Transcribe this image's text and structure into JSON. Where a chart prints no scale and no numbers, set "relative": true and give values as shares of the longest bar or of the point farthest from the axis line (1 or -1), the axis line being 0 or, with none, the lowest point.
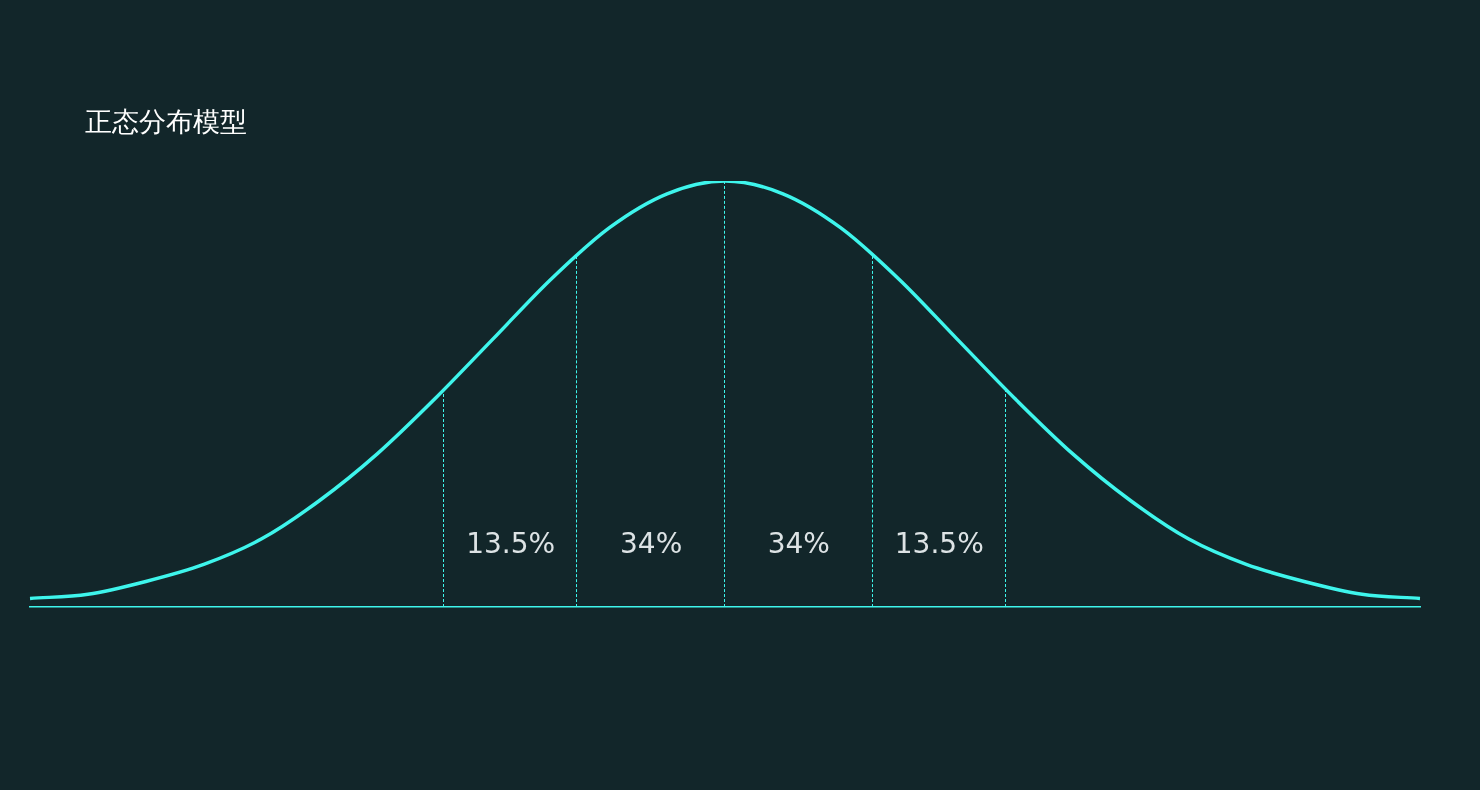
{
  "chart_data": {
    "type": "line",
    "title": "正态分布模型",
    "relative": true,
    "categories": [
      null,
      null,
      null,
      null,
      null,
      null,
      null,
      null,
      null,
      null,
      null,
      null,
      null,
      null,
      null,
      null,
      null,
      null,
      null,
      null,
      null,
      null,
      null,
      null,
      null
    ],
    "tick_labels": false,
    "legend": false,
    "marker": "none",
    "line_style": "solid",
    "series": [
      {
        "color": "#3ef5ec",
        "values": [
          0.02,
          0.03,
          0.06,
          0.1,
          0.16,
          0.25,
          0.36,
          0.49,
          0.63,
          0.77,
          0.89,
          0.97,
          1,
          0.97,
          0.89,
          0.77,
          0.63,
          0.49,
          0.36,
          0.25,
          0.16,
          0.1,
          0.06,
          0.03,
          0.02
        ]
      }
    ],
    "annotations": [
      "13.5%",
      "34%",
      "34%",
      "13.5%"
    ]
  }
}
